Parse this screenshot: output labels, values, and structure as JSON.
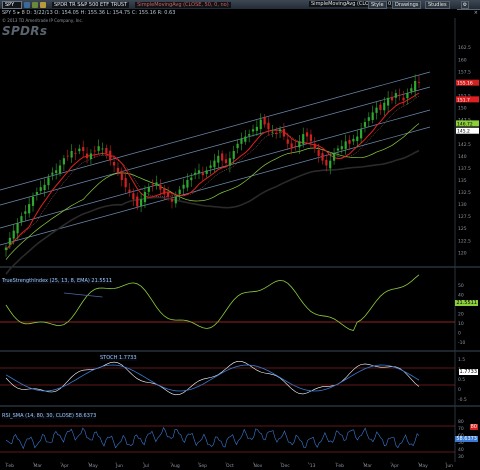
{
  "toolbar": {
    "symbol": "SPY",
    "description": "SPDR TR S&P 500 ETF TRUST",
    "study_label": "SimpleMovingAvg (CLOSE, 50, 0, no)",
    "study_label2": "SimpleMovingAvg (CLOSE, 34, 0)",
    "style_label": "Style",
    "drawings_label": "Drawings",
    "studies_label": "Studies"
  },
  "price_line": "SPY  5 ▸ 8  D: 3/22/13  O: 154.05  H: 155.36  L: 154.75  C: 155.16  R: 0.63",
  "copyright": "© 2013 TD Ameritrade IP Company, Inc.",
  "watermark": "SPDRs",
  "scale_tag": "×",
  "colors": {
    "bg": "#000000",
    "up": "#2ea82e",
    "down": "#d22020",
    "sma50": "#e02020",
    "sma150": "#8ccf3c",
    "sma200": "#1a1a1a",
    "channel": "#6e8db0"
  },
  "price_axis": {
    "ticks": [
      "162.5",
      "160",
      "157.5",
      "155",
      "152.5",
      "150",
      "147.5",
      "145",
      "142.5",
      "140",
      "137.5",
      "135",
      "132.5",
      "130",
      "127.5",
      "125",
      "122.5",
      "120"
    ]
  },
  "price_tags": [
    {
      "label": "155.16",
      "color": "#d22020",
      "text_color": "#fff"
    },
    {
      "label": "151.7",
      "color": "#e02020",
      "text_color": "#fff"
    },
    {
      "label": "146.72",
      "color": "#8ccf3c",
      "text_color": "#000"
    },
    {
      "label": "145.2",
      "color": "#ffffff",
      "text_color": "#000"
    }
  ],
  "panel1": {
    "label": "TrueStrengthIndex (25, 13, 8, EMA)  21.5511",
    "tag": "21.5511",
    "ticks": [
      "50",
      "40",
      "30",
      "20",
      "10",
      "0",
      "-10"
    ]
  },
  "panel2": {
    "label": "STOCH  1.7733",
    "tag": "1.7733",
    "ticks": [
      "1.5",
      "1",
      "0.5",
      "0",
      "-0.5"
    ]
  },
  "panel3": {
    "label": "RSI_SMA (14, 80, 30, CLOSE) 58.6373",
    "tag": "58.6373",
    "tag2": "80",
    "ticks": [
      "80",
      "70",
      "60",
      "50",
      "40",
      "30"
    ]
  },
  "x_axis": [
    "Feb",
    "Mar",
    "Apr",
    "May",
    "Jun",
    "Jul",
    "Aug",
    "Sep",
    "Oct",
    "Nov",
    "Dec",
    "'13",
    "Feb",
    "Mar",
    "Apr",
    "May",
    "Jun"
  ],
  "chart_data": {
    "type": "candlestick",
    "closes": [
      121,
      123,
      124.5,
      126,
      127.5,
      128.5,
      130,
      131.5,
      132.5,
      133.5,
      134,
      135.5,
      136.5,
      137,
      138,
      139.5,
      140,
      141,
      140.5,
      141.5,
      141,
      139.5,
      140.5,
      141,
      142,
      141.5,
      140.5,
      139,
      138,
      136.5,
      135,
      133.5,
      132.5,
      131,
      129.5,
      131,
      132.5,
      133.5,
      134,
      134.5,
      133,
      132,
      131.5,
      130.5,
      131.5,
      133,
      134,
      135,
      135.5,
      136.5,
      137,
      136,
      137,
      138,
      139,
      140,
      139,
      138.5,
      139.5,
      141,
      142.5,
      143.5,
      144,
      144.5,
      145.5,
      146,
      147.5,
      146.5,
      145.5,
      145,
      144.5,
      145.5,
      144,
      142.5,
      141.5,
      142,
      143,
      144.5,
      144,
      143,
      141.5,
      140,
      139,
      138,
      139,
      140.5,
      141.5,
      142,
      143,
      142.5,
      143.5,
      144,
      145.5,
      147,
      148,
      149,
      150,
      149.5,
      151,
      152,
      151.5,
      153,
      152.5,
      151.5,
      153,
      154,
      155.5,
      155.16
    ]
  }
}
